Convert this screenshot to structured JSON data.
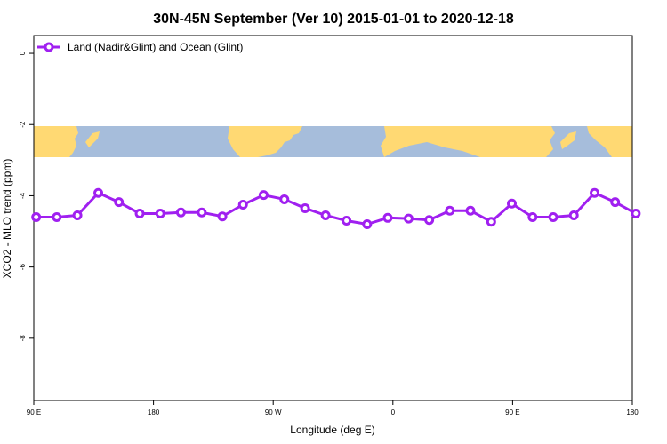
{
  "chart_data": {
    "type": "line",
    "title": "30N-45N September (Ver 10)   2015-01-01 to 2020-12-18",
    "xlabel": "Longitude (deg E)",
    "ylabel": "XCO2 - MLO trend (ppm)",
    "x_tick_labels": [
      "90 E",
      "180",
      "90 W",
      "0",
      "90 E",
      "180"
    ],
    "y_ticks": [
      0,
      -2,
      -4,
      -6,
      -8
    ],
    "y_tick_labels": [
      "0",
      "-2",
      "-4",
      "-6",
      "-8"
    ],
    "ylim": [
      -9.75,
      0.5
    ],
    "legend_position": "top-left",
    "grid": false,
    "map_band": {
      "land_color": "#ffd973",
      "ocean_color": "#a6bddb"
    },
    "series": [
      {
        "name": "Land (Nadir&Glint) and Ocean (Glint)",
        "color": "#a020f0",
        "x": [
          91.8,
          107.3,
          122.8,
          138.5,
          154.0,
          169.6,
          185.1,
          200.6,
          216.3,
          231.8,
          247.3,
          262.8,
          278.4,
          294.0,
          309.4,
          325.1,
          340.6,
          356.1,
          11.8,
          27.3,
          42.8,
          58.3,
          73.9,
          89.4,
          105.0,
          120.5,
          136.0,
          151.6,
          167.1,
          182.6
        ],
        "values": [
          -4.6,
          -4.6,
          -4.55,
          -3.92,
          -4.18,
          -4.5,
          -4.5,
          -4.47,
          -4.47,
          -4.58,
          -4.25,
          -3.98,
          -4.1,
          -4.35,
          -4.55,
          -4.7,
          -4.8,
          -4.62,
          -4.64,
          -4.68,
          -4.42,
          -4.42,
          -4.73,
          -4.22,
          -4.6,
          -4.6,
          -4.55,
          -3.92,
          -4.18,
          -4.5
        ]
      }
    ]
  }
}
